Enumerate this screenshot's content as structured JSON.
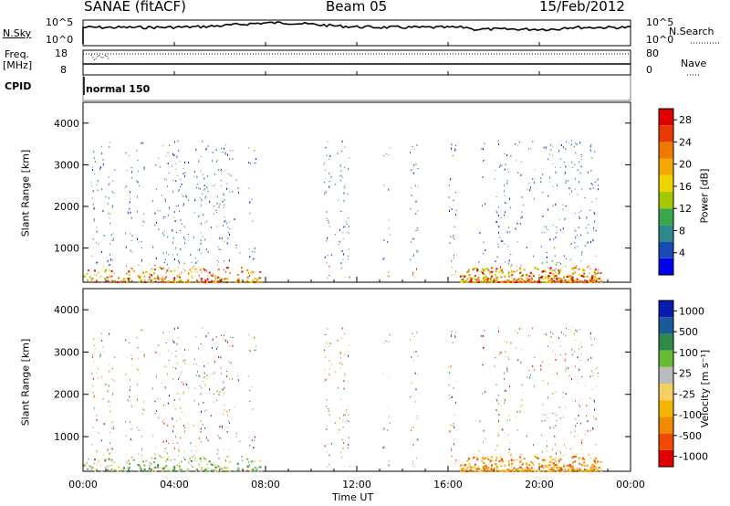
{
  "header": {
    "station": "SANAE (fitACF)",
    "beam": "Beam 05",
    "date": "15/Feb/2012"
  },
  "noise_panel": {
    "left_label": "N.Sky",
    "left_ticks": [
      "10^5",
      "10^0"
    ],
    "right_label": "N.Search",
    "right_ticks": [
      "10^5",
      "10^0"
    ]
  },
  "freq_panel": {
    "left_label_1": "Freq.",
    "left_label_2": "[MHz]",
    "left_ticks": [
      "18",
      "8"
    ],
    "right_label": "Nave",
    "right_ticks": [
      "80",
      "0"
    ]
  },
  "cpid_panel": {
    "label": "CPID",
    "mode": "normal 150"
  },
  "x_axis": {
    "label": "Time UT",
    "ticks": [
      "00:00",
      "04:00",
      "08:00",
      "12:00",
      "16:00",
      "20:00",
      "00:00"
    ]
  },
  "chart_data": [
    {
      "type": "heatmap",
      "quantity": "Power",
      "ylabel": "Slant Range [km]",
      "xlabel": "Time UT",
      "ylim": [
        180,
        4500
      ],
      "y_ticks": [
        1000,
        2000,
        3000,
        4000
      ],
      "xlim": [
        0,
        24
      ],
      "colorbar_label": "Power [dB]",
      "colorbar_ticks": [
        "4",
        "8",
        "12",
        "16",
        "20",
        "24",
        "28"
      ],
      "colors": [
        "#0000ee",
        "#1a4ab4",
        "#2e8a8a",
        "#3aa84a",
        "#a6c800",
        "#f0d400",
        "#f5a800",
        "#f07a00",
        "#e83a00",
        "#e00000"
      ],
      "vmin": 0,
      "vmax": 30
    },
    {
      "type": "heatmap",
      "quantity": "Velocity",
      "ylabel": "Slant Range [km]",
      "xlabel": "Time UT",
      "ylim": [
        180,
        4500
      ],
      "y_ticks": [
        1000,
        2000,
        3000,
        4000
      ],
      "xlim": [
        0,
        24
      ],
      "colorbar_label": "Velocity [m s⁻¹]",
      "colorbar_ticks": [
        "1000",
        "500",
        "100",
        "25",
        "-25",
        "-100",
        "-500",
        "-1000"
      ],
      "colors": [
        "#e00000",
        "#f04a00",
        "#f08a00",
        "#f5b400",
        "#f5d060",
        "#bbbbbb",
        "#66bb33",
        "#2e8a4a",
        "#1a5a9a",
        "#0a1ab0"
      ]
    }
  ]
}
